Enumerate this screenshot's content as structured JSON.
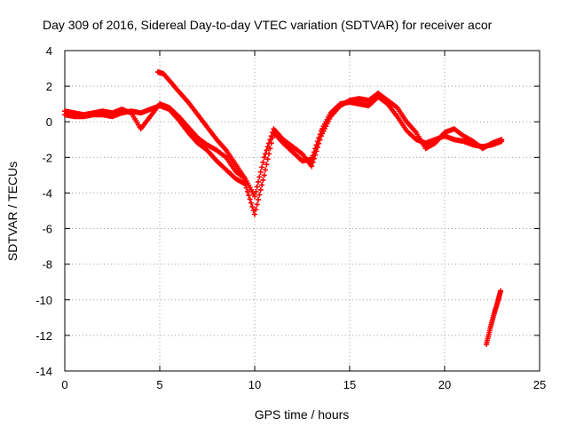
{
  "chart_data": {
    "type": "scatter",
    "title": "Day 309 of 2016, Sidereal Day-to-day VTEC variation (SDTVAR) for receiver acor",
    "xlabel": "GPS time / hours",
    "ylabel": "SDTVAR / TECUs",
    "xlim": [
      0,
      25
    ],
    "ylim": [
      -14,
      4
    ],
    "xticks": [
      0,
      5,
      10,
      15,
      20,
      25
    ],
    "yticks": [
      4,
      2,
      0,
      -2,
      -4,
      -6,
      -8,
      -10,
      -12,
      -14
    ],
    "grid": true,
    "marker": "+",
    "color": "#ff0000",
    "series": [
      {
        "name": "track-a",
        "x": [
          0.0,
          0.5,
          1.0,
          1.5,
          2.0,
          2.5,
          3.0,
          3.5,
          4.0,
          4.5,
          5.0,
          5.5,
          6.0,
          6.5,
          7.0,
          7.5,
          8.0,
          8.5,
          9.0,
          9.5,
          10.0,
          10.5,
          11.0,
          11.5,
          12.0,
          12.5,
          13.0,
          13.5,
          14.0,
          14.5,
          15.0,
          15.5,
          16.0,
          16.5,
          17.0,
          17.5,
          18.0,
          18.5,
          19.0,
          19.5,
          20.0,
          20.5,
          21.0,
          21.5,
          22.0,
          22.5,
          23.0
        ],
        "y": [
          0.4,
          0.3,
          0.3,
          0.4,
          0.4,
          0.3,
          0.5,
          0.6,
          0.5,
          0.7,
          0.9,
          0.7,
          0.1,
          -0.6,
          -1.2,
          -1.6,
          -2.2,
          -2.7,
          -3.2,
          -3.5,
          -5.2,
          -3.0,
          -0.6,
          -1.2,
          -1.7,
          -2.2,
          -2.1,
          -0.5,
          0.5,
          1.0,
          1.1,
          1.0,
          0.9,
          1.4,
          1.0,
          0.3,
          -0.5,
          -1.0,
          -1.2,
          -1.0,
          -0.8,
          -1.0,
          -1.1,
          -1.3,
          -1.4,
          -1.3,
          -1.1
        ]
      },
      {
        "name": "track-b",
        "x": [
          0.0,
          0.5,
          1.0,
          1.5,
          2.0,
          2.5,
          3.0,
          3.5,
          4.0,
          4.5,
          5.0,
          5.5,
          6.0,
          6.5,
          7.0,
          7.5,
          8.0,
          8.5,
          9.0,
          9.5,
          10.0,
          10.5,
          11.0,
          11.5,
          12.0,
          12.5,
          13.0,
          13.5,
          14.0,
          14.5,
          15.0,
          15.5,
          16.0,
          16.5,
          17.0,
          17.5,
          18.0,
          18.5,
          19.0,
          19.5,
          20.0,
          20.5,
          21.0,
          21.5,
          22.0,
          22.5,
          23.0
        ],
        "y": [
          0.6,
          0.5,
          0.4,
          0.5,
          0.6,
          0.5,
          0.7,
          0.5,
          -0.4,
          0.3,
          1.0,
          0.8,
          0.3,
          -0.3,
          -0.9,
          -1.3,
          -1.6,
          -2.0,
          -2.8,
          -3.2,
          -4.2,
          -2.0,
          -0.4,
          -1.0,
          -1.4,
          -1.8,
          -2.5,
          -0.8,
          0.3,
          0.9,
          1.2,
          1.3,
          1.2,
          1.6,
          1.2,
          0.8,
          0.0,
          -0.6,
          -1.5,
          -1.2,
          -0.6,
          -0.4,
          -0.8,
          -1.1,
          -1.5,
          -1.2,
          -1.0
        ]
      },
      {
        "name": "track-c",
        "x": [
          4.9,
          5.2,
          5.6,
          6.0,
          6.5,
          7.0,
          7.5,
          8.0,
          8.5,
          9.0,
          9.5
        ],
        "y": [
          2.8,
          2.7,
          2.2,
          1.7,
          1.1,
          0.4,
          -0.3,
          -1.0,
          -1.6,
          -2.4,
          -3.2
        ]
      },
      {
        "name": "track-d",
        "x": [
          22.2,
          22.4,
          22.6,
          22.8,
          22.95
        ],
        "y": [
          -12.5,
          -11.6,
          -10.8,
          -10.1,
          -9.5
        ]
      }
    ]
  }
}
